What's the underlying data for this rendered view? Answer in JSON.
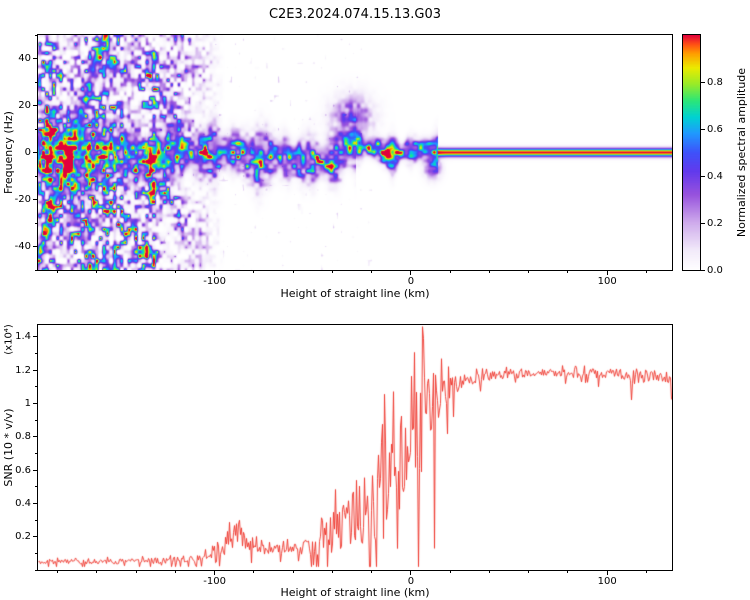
{
  "title": "C2E3.2024.074.15.13.G03",
  "chart_data": [
    {
      "type": "heatmap",
      "panel": "top",
      "title": "C2E3.2024.074.15.13.G03",
      "xlabel": "Height of straight line (km)",
      "ylabel": "Frequency (Hz)",
      "xlim": [
        -190,
        133
      ],
      "ylim": [
        -50,
        50
      ],
      "xticks": {
        "values": [
          -100,
          0,
          100
        ],
        "labels": [
          "-100",
          "0",
          "100"
        ],
        "minor_step": 20
      },
      "yticks": {
        "values": [
          -40,
          -20,
          0,
          20,
          40
        ],
        "labels": [
          "-40",
          "-20",
          "0",
          "20",
          "40"
        ],
        "minor_step": 10
      },
      "colorbar": {
        "label": "Normalized spectral amplitude",
        "range": [
          0,
          1
        ],
        "tick_values": [
          0,
          0.2,
          0.4,
          0.6,
          0.8
        ],
        "tick_labels": [
          "0.0",
          "0.2",
          "0.4",
          "0.6",
          "0.8"
        ]
      },
      "colormap_stops": [
        [
          0.0,
          255,
          255,
          255
        ],
        [
          0.08,
          243,
          236,
          250
        ],
        [
          0.2,
          207,
          172,
          236
        ],
        [
          0.32,
          152,
          82,
          221
        ],
        [
          0.42,
          97,
          58,
          237
        ],
        [
          0.5,
          62,
          82,
          250
        ],
        [
          0.58,
          32,
          152,
          255
        ],
        [
          0.65,
          0,
          210,
          210
        ],
        [
          0.72,
          44,
          230,
          120
        ],
        [
          0.79,
          152,
          235,
          40
        ],
        [
          0.86,
          235,
          235,
          0
        ],
        [
          0.92,
          255,
          158,
          0
        ],
        [
          0.96,
          255,
          80,
          20
        ],
        [
          1.0,
          225,
          0,
          60
        ]
      ],
      "signal_model": {
        "description": "Radar head-echo spectrogram: diffuse purple speckle and diagonal streaks at far left, a noisy speckled Doppler band centered near 0 Hz between about -135 and 0 km that narrows and brightens with height, becoming a solid amplitude~1 horizontal line at 0 Hz for heights above ~14 km, extending to the right edge.",
        "noise_seed": 7,
        "regions": [
          {
            "x_min": 14,
            "x_max": 133,
            "band_amp": 1.0,
            "band_center_hz": 0,
            "band_halfwidth_hz": 1.2,
            "speckle": 0
          },
          {
            "x_min": -28,
            "x_max": 14,
            "band_amp": 0.97,
            "band_center_hz": 0,
            "band_halfwidth_hz": 2.6,
            "speckle": 0.85
          },
          {
            "x_min": -135,
            "x_max": -28,
            "band_amp": 0.75,
            "band_center_hz": -1.5,
            "band_halfwidth_hz": 4.5,
            "speckle": 1
          },
          {
            "x_min": -190,
            "x_max": -135,
            "band_amp": 0.6,
            "band_center_hz": -1,
            "band_halfwidth_hz": 6,
            "speckle": 1,
            "background_speckle": 0.9
          }
        ]
      }
    },
    {
      "type": "line",
      "panel": "bottom",
      "xlabel": "Height of straight line (km)",
      "ylabel": "SNR (10 * v/v)",
      "scale_note": "(x10⁴)",
      "xlim": [
        -190,
        133
      ],
      "ylim": [
        0,
        1.47
      ],
      "xticks": {
        "values": [
          -100,
          0,
          100
        ],
        "labels": [
          "-100",
          "0",
          "100"
        ],
        "minor_step": 20
      },
      "yticks": {
        "values": [
          0.2,
          0.4,
          0.6,
          0.8,
          1.0,
          1.2,
          1.4
        ],
        "labels": [
          "0.2",
          "0.4",
          "0.6",
          "0.8",
          "1",
          "1.2",
          "1.4"
        ],
        "minor_step": 0.1
      },
      "series": [
        {
          "name": "SNR",
          "color": "#ee3228",
          "noise_seed": 11,
          "keypoints": {
            "x": [
              -190,
              -150,
              -120,
              -105,
              -95,
              -88,
              -82,
              -75,
              -65,
              -55,
              -48,
              -40,
              -33,
              -27,
              -20,
              -14,
              -8,
              -3,
              2,
              6,
              10,
              14,
              18,
              24,
              32,
              45,
              70,
              100,
              115,
              125,
              133
            ],
            "base": [
              0.05,
              0.05,
              0.06,
              0.08,
              0.15,
              0.24,
              0.16,
              0.12,
              0.12,
              0.13,
              0.16,
              0.22,
              0.28,
              0.33,
              0.4,
              0.5,
              0.62,
              0.72,
              0.8,
              0.88,
              0.98,
              1.05,
              1.08,
              1.12,
              1.15,
              1.17,
              1.18,
              1.18,
              1.16,
              1.17,
              1.12
            ],
            "noise_amp": [
              0.015,
              0.015,
              0.02,
              0.03,
              0.06,
              0.08,
              0.05,
              0.03,
              0.03,
              0.04,
              0.07,
              0.12,
              0.18,
              0.22,
              0.28,
              0.32,
              0.34,
              0.32,
              0.3,
              0.28,
              0.22,
              0.15,
              0.1,
              0.05,
              0.03,
              0.025,
              0.025,
              0.03,
              0.05,
              0.03,
              0.035
            ]
          },
          "spikes": [
            {
              "x": 5.5,
              "y": 1.46
            },
            {
              "x": 12,
              "y": 0.13
            },
            {
              "x": 112,
              "y": 1.02
            }
          ]
        }
      ]
    }
  ]
}
